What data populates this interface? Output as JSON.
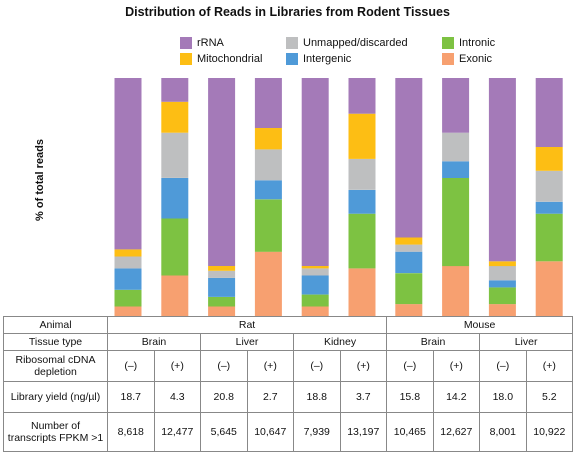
{
  "chart_data": {
    "type": "bar",
    "stacked": true,
    "normalized": true,
    "title": "Distribution of Reads in Libraries from Rodent Tissues",
    "ylabel": "% of total reads",
    "ylim": [
      0,
      100
    ],
    "grid": false,
    "legend_position": "top",
    "categories": [
      "Rat Brain (–)",
      "Rat Brain (+)",
      "Rat Liver (–)",
      "Rat Liver (+)",
      "Rat Kidney (–)",
      "Rat Kidney (+)",
      "Mouse Brain (–)",
      "Mouse Brain (+)",
      "Mouse Liver (–)",
      "Mouse Liver (+)"
    ],
    "series": [
      {
        "name": "Exonic",
        "color": "#F7A070",
        "values": [
          4,
          17,
          4,
          27,
          4,
          20,
          5,
          21,
          5,
          23
        ]
      },
      {
        "name": "Intronic",
        "color": "#7DC242",
        "values": [
          7,
          24,
          4,
          22,
          5,
          23,
          13,
          37,
          7,
          20
        ]
      },
      {
        "name": "Intergenic",
        "color": "#4F9AD8",
        "values": [
          9,
          17,
          8,
          8,
          8,
          10,
          9,
          7,
          3,
          5
        ]
      },
      {
        "name": "Unmapped/discarded",
        "color": "#BEBFC0",
        "values": [
          5,
          19,
          3,
          13,
          3,
          13,
          3,
          12,
          6,
          13
        ]
      },
      {
        "name": "Mitochondrial",
        "color": "#FDBE14",
        "values": [
          3,
          13,
          2,
          9,
          1,
          19,
          3,
          0,
          2,
          10
        ]
      },
      {
        "name": "rRNA",
        "color": "#A47AB8",
        "values": [
          72,
          10,
          79,
          21,
          79,
          15,
          67,
          23,
          77,
          29
        ]
      }
    ]
  },
  "legend": [
    {
      "label": "rRNA",
      "color": "#A47AB8"
    },
    {
      "label": "Unmapped/discarded",
      "color": "#BEBFC0"
    },
    {
      "label": "Intronic",
      "color": "#7DC242"
    },
    {
      "label": "Mitochondrial",
      "color": "#FDBE14"
    },
    {
      "label": "Intergenic",
      "color": "#4F9AD8"
    },
    {
      "label": "Exonic",
      "color": "#F7A070"
    }
  ],
  "table": {
    "animal_label": "Animal",
    "rat": "Rat",
    "mouse": "Mouse",
    "tissue_label": "Tissue type",
    "tissues": [
      "Brain",
      "Liver",
      "Kidney",
      "Brain",
      "Liver"
    ],
    "depletion_label": "Ribosomal cDNA depletion",
    "depletion": [
      "(–)",
      "(+)",
      "(–)",
      "(+)",
      "(–)",
      "(+)",
      "(–)",
      "(+)",
      "(–)",
      "(+)"
    ],
    "yield_label": "Library yield (ng/µl)",
    "yield": [
      "18.7",
      "4.3",
      "20.8",
      "2.7",
      "18.8",
      "3.7",
      "15.8",
      "14.2",
      "18.0",
      "5.2"
    ],
    "transcripts_label": "Number of transcripts FPKM >1",
    "transcripts": [
      "8,618",
      "12,477",
      "5,645",
      "10,647",
      "7,939",
      "13,197",
      "10,465",
      "12,627",
      "8,001",
      "10,922"
    ]
  }
}
